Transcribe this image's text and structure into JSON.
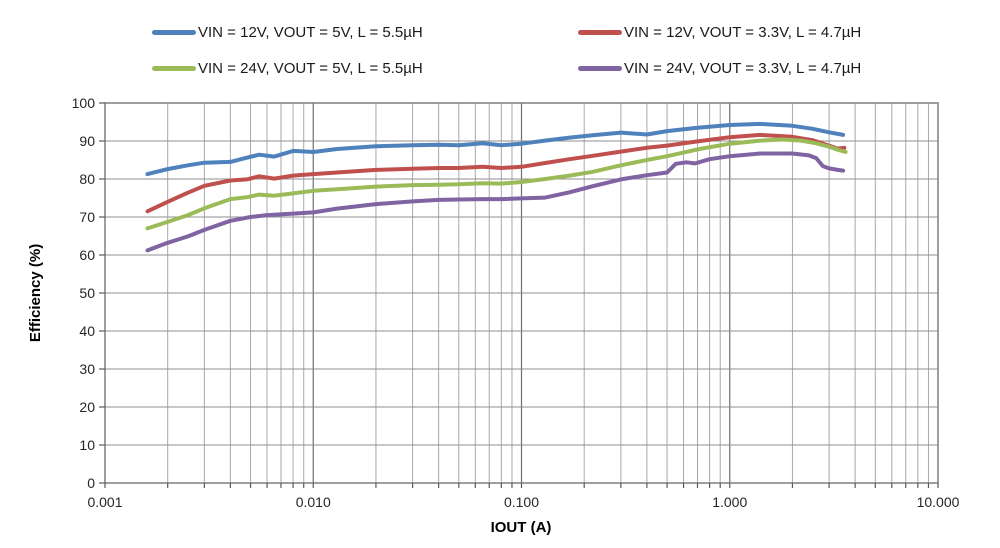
{
  "colors": {
    "background": "#ffffff",
    "frame": "#7f7f7f",
    "grid_major": "#6f6f6f",
    "grid_minor": "#a8a8a8",
    "grid_horizontal": "#8f8f8f",
    "tick": "#595959",
    "text": "#1a1a1a",
    "series_blue": "#4F81BD",
    "series_red": "#C0504D",
    "series_green": "#9BBB59",
    "series_purple": "#8064A2"
  },
  "chart_data": {
    "type": "line",
    "title": "",
    "xlabel": "IOUT (A)",
    "ylabel": "Efficiency (%)",
    "x_scale": "log",
    "xlim": [
      0.001,
      10
    ],
    "ylim": [
      0,
      100
    ],
    "grid": true,
    "legend_position": "top",
    "x_tick_values": [
      0.001,
      0.01,
      0.1,
      1,
      10
    ],
    "x_tick_labels": [
      "0.001",
      "0.010",
      "0.100",
      "1.000",
      "10.000"
    ],
    "y_tick_values": [
      0,
      10,
      20,
      30,
      40,
      50,
      60,
      70,
      80,
      90,
      100
    ],
    "series": [
      {
        "name": "VIN = 12V, VOUT = 5V, L = 5.5µH",
        "color": "#4F81BD",
        "points": [
          [
            0.0016,
            81.3
          ],
          [
            0.002,
            82.6
          ],
          [
            0.0025,
            83.6
          ],
          [
            0.003,
            84.3
          ],
          [
            0.004,
            84.5
          ],
          [
            0.0048,
            85.6
          ],
          [
            0.0055,
            86.4
          ],
          [
            0.0065,
            85.9
          ],
          [
            0.008,
            87.4
          ],
          [
            0.01,
            87.1
          ],
          [
            0.013,
            87.9
          ],
          [
            0.02,
            88.6
          ],
          [
            0.03,
            88.9
          ],
          [
            0.04,
            89.0
          ],
          [
            0.05,
            88.9
          ],
          [
            0.065,
            89.4
          ],
          [
            0.08,
            88.9
          ],
          [
            0.1,
            89.3
          ],
          [
            0.13,
            90.1
          ],
          [
            0.17,
            90.9
          ],
          [
            0.22,
            91.5
          ],
          [
            0.3,
            92.2
          ],
          [
            0.4,
            91.7
          ],
          [
            0.5,
            92.6
          ],
          [
            0.7,
            93.5
          ],
          [
            1.0,
            94.2
          ],
          [
            1.4,
            94.5
          ],
          [
            2.0,
            94.0
          ],
          [
            2.5,
            93.2
          ],
          [
            3.0,
            92.3
          ],
          [
            3.5,
            91.6
          ]
        ]
      },
      {
        "name": "VIN = 12V, VOUT = 3.3V, L = 4.7µH",
        "color": "#C0504D",
        "points": [
          [
            0.0016,
            71.5
          ],
          [
            0.002,
            74.0
          ],
          [
            0.0025,
            76.4
          ],
          [
            0.003,
            78.2
          ],
          [
            0.004,
            79.6
          ],
          [
            0.0048,
            79.9
          ],
          [
            0.0055,
            80.7
          ],
          [
            0.0065,
            80.1
          ],
          [
            0.008,
            80.9
          ],
          [
            0.01,
            81.3
          ],
          [
            0.013,
            81.7
          ],
          [
            0.02,
            82.4
          ],
          [
            0.03,
            82.7
          ],
          [
            0.04,
            82.9
          ],
          [
            0.05,
            82.9
          ],
          [
            0.065,
            83.2
          ],
          [
            0.08,
            82.9
          ],
          [
            0.1,
            83.2
          ],
          [
            0.13,
            84.2
          ],
          [
            0.17,
            85.2
          ],
          [
            0.22,
            86.1
          ],
          [
            0.3,
            87.2
          ],
          [
            0.4,
            88.2
          ],
          [
            0.5,
            88.8
          ],
          [
            0.7,
            89.9
          ],
          [
            1.0,
            91.0
          ],
          [
            1.4,
            91.6
          ],
          [
            2.0,
            91.1
          ],
          [
            2.5,
            90.2
          ],
          [
            3.0,
            88.8
          ],
          [
            3.3,
            88.0
          ],
          [
            3.55,
            88.2
          ]
        ]
      },
      {
        "name": "VIN = 24V, VOUT = 5V, L = 5.5µH",
        "color": "#9BBB59",
        "points": [
          [
            0.0016,
            67.0
          ],
          [
            0.002,
            68.7
          ],
          [
            0.0025,
            70.5
          ],
          [
            0.003,
            72.3
          ],
          [
            0.004,
            74.7
          ],
          [
            0.0048,
            75.2
          ],
          [
            0.0055,
            75.9
          ],
          [
            0.0065,
            75.6
          ],
          [
            0.008,
            76.2
          ],
          [
            0.01,
            76.9
          ],
          [
            0.013,
            77.3
          ],
          [
            0.02,
            78.0
          ],
          [
            0.03,
            78.4
          ],
          [
            0.04,
            78.5
          ],
          [
            0.05,
            78.6
          ],
          [
            0.065,
            78.9
          ],
          [
            0.08,
            78.8
          ],
          [
            0.1,
            79.2
          ],
          [
            0.13,
            80.0
          ],
          [
            0.17,
            80.9
          ],
          [
            0.22,
            81.9
          ],
          [
            0.3,
            83.6
          ],
          [
            0.4,
            85.0
          ],
          [
            0.5,
            86.0
          ],
          [
            0.7,
            87.8
          ],
          [
            1.0,
            89.3
          ],
          [
            1.4,
            90.1
          ],
          [
            1.8,
            90.4
          ],
          [
            2.2,
            90.1
          ],
          [
            2.6,
            89.4
          ],
          [
            3.0,
            88.5
          ],
          [
            3.3,
            87.7
          ],
          [
            3.6,
            87.1
          ]
        ]
      },
      {
        "name": "VIN = 24V, VOUT = 3.3V, L = 4.7µH",
        "color": "#8064A2",
        "points": [
          [
            0.0016,
            61.2
          ],
          [
            0.002,
            63.2
          ],
          [
            0.0025,
            64.9
          ],
          [
            0.003,
            66.6
          ],
          [
            0.004,
            69.0
          ],
          [
            0.005,
            70.0
          ],
          [
            0.006,
            70.5
          ],
          [
            0.008,
            70.9
          ],
          [
            0.01,
            71.2
          ],
          [
            0.013,
            72.2
          ],
          [
            0.02,
            73.4
          ],
          [
            0.03,
            74.1
          ],
          [
            0.04,
            74.5
          ],
          [
            0.05,
            74.6
          ],
          [
            0.065,
            74.7
          ],
          [
            0.08,
            74.7
          ],
          [
            0.1,
            74.9
          ],
          [
            0.13,
            75.1
          ],
          [
            0.17,
            76.5
          ],
          [
            0.22,
            78.1
          ],
          [
            0.3,
            79.9
          ],
          [
            0.4,
            81.0
          ],
          [
            0.5,
            81.7
          ],
          [
            0.55,
            84.0
          ],
          [
            0.62,
            84.4
          ],
          [
            0.68,
            84.1
          ],
          [
            0.8,
            85.2
          ],
          [
            1.0,
            86.0
          ],
          [
            1.4,
            86.7
          ],
          [
            2.0,
            86.7
          ],
          [
            2.4,
            86.2
          ],
          [
            2.6,
            85.5
          ],
          [
            2.8,
            83.4
          ],
          [
            3.0,
            82.8
          ],
          [
            3.3,
            82.4
          ],
          [
            3.5,
            82.2
          ]
        ]
      }
    ]
  }
}
